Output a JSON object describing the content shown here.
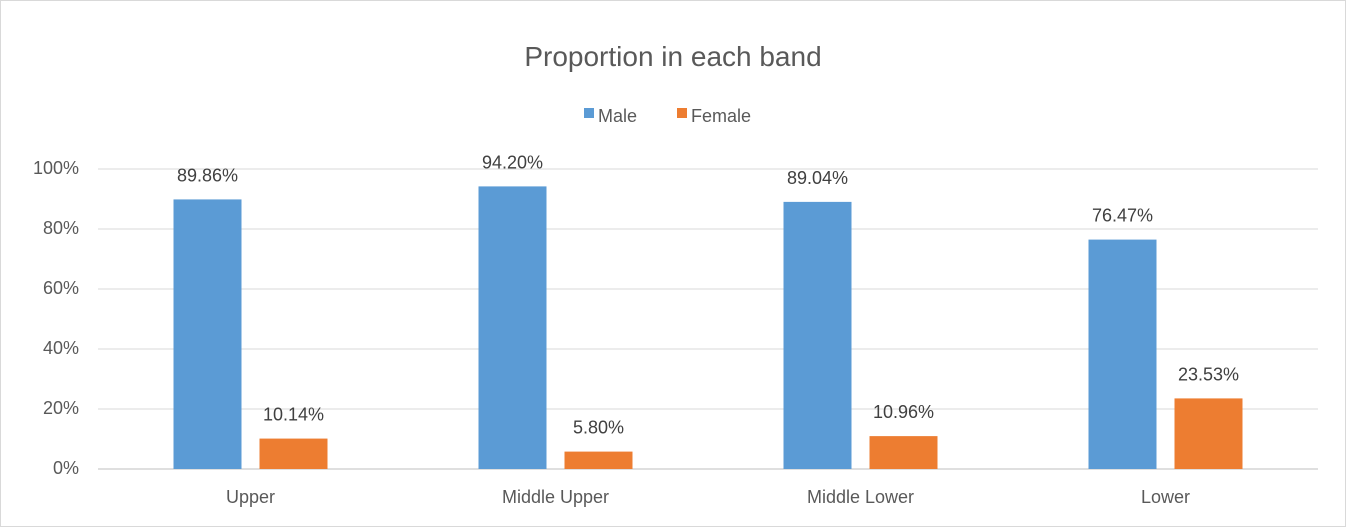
{
  "chart_data": {
    "type": "bar",
    "title": "Proportion in each band",
    "categories": [
      "Upper",
      "Middle Upper",
      "Middle Lower",
      "Lower"
    ],
    "series": [
      {
        "name": "Male",
        "color": "#5b9bd5",
        "values": [
          89.86,
          94.2,
          89.04,
          76.47
        ],
        "labels": [
          "89.86%",
          "94.20%",
          "89.04%",
          "76.47%"
        ]
      },
      {
        "name": "Female",
        "color": "#ed7d31",
        "values": [
          10.14,
          5.8,
          10.96,
          23.53
        ],
        "labels": [
          "10.14%",
          "5.80%",
          "10.96%",
          "23.53%"
        ]
      }
    ],
    "ylim": [
      0,
      100
    ],
    "y_ticks": [
      0,
      20,
      40,
      60,
      80,
      100
    ],
    "y_tick_labels": [
      "0%",
      "20%",
      "40%",
      "60%",
      "80%",
      "100%"
    ],
    "xlabel": "",
    "ylabel": "",
    "grid": true,
    "legend_position": "top"
  }
}
